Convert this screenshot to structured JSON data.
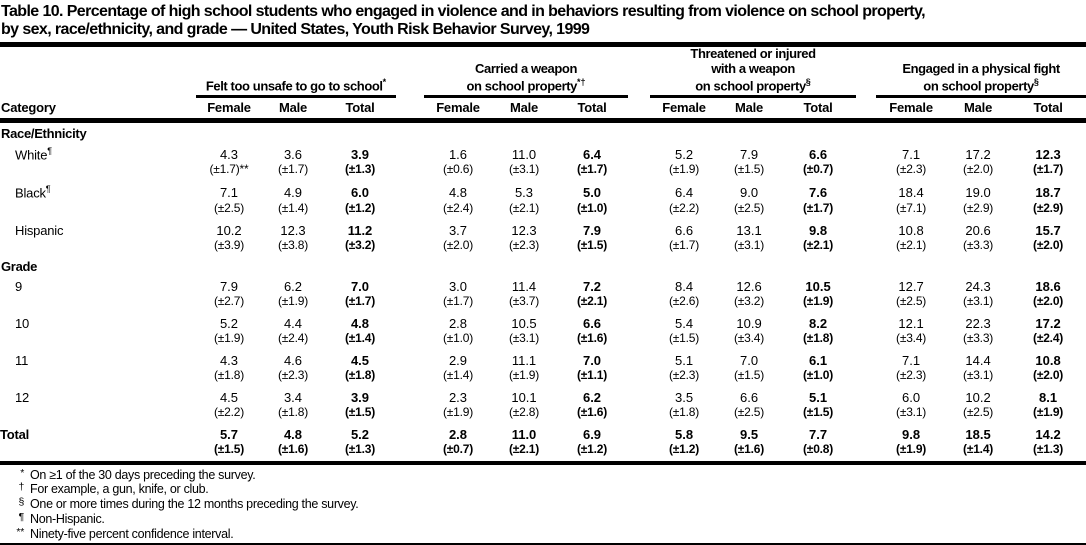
{
  "title": "Table 10. Percentage of high school students who engaged in violence and in behaviors resulting from violence on school property,\nby sex, race/ethnicity, and grade — United States, Youth Risk Behavior Survey, 1999",
  "header": {
    "category_label": "Category",
    "sub_columns": [
      "Female",
      "Male",
      "Total"
    ],
    "groups": [
      {
        "label": "Felt too unsafe to go to school",
        "marker": "*"
      },
      {
        "label": "Carried a weapon\non school property",
        "marker": "*†"
      },
      {
        "label": "Threatened or injured\nwith a weapon\non school property",
        "marker": "§"
      },
      {
        "label": "Engaged in a physical fight\non school property",
        "marker": "§"
      }
    ]
  },
  "sections": [
    {
      "label": "Race/Ethnicity",
      "rows": [
        {
          "label": "White",
          "sup": "¶",
          "values": [
            "4.3",
            "3.6",
            "3.9",
            "1.6",
            "11.0",
            "6.4",
            "5.2",
            "7.9",
            "6.6",
            "7.1",
            "17.2",
            "12.3"
          ],
          "cis": [
            "(±1.7)**",
            "(±1.7)",
            "(±1.3)",
            "(±0.6)",
            "(±3.1)",
            "(±1.7)",
            "(±1.9)",
            "(±1.5)",
            "(±0.7)",
            "(±2.3)",
            "(±2.0)",
            "(±1.7)"
          ]
        },
        {
          "label": "Black",
          "sup": "¶",
          "values": [
            "7.1",
            "4.9",
            "6.0",
            "4.8",
            "5.3",
            "5.0",
            "6.4",
            "9.0",
            "7.6",
            "18.4",
            "19.0",
            "18.7"
          ],
          "cis": [
            "(±2.5)",
            "(±1.4)",
            "(±1.2)",
            "(±2.4)",
            "(±2.1)",
            "(±1.0)",
            "(±2.2)",
            "(±2.5)",
            "(±1.7)",
            "(±7.1)",
            "(±2.9)",
            "(±2.9)"
          ]
        },
        {
          "label": "Hispanic",
          "sup": "",
          "values": [
            "10.2",
            "12.3",
            "11.2",
            "3.7",
            "12.3",
            "7.9",
            "6.6",
            "13.1",
            "9.8",
            "10.8",
            "20.6",
            "15.7"
          ],
          "cis": [
            "(±3.9)",
            "(±3.8)",
            "(±3.2)",
            "(±2.0)",
            "(±2.3)",
            "(±1.5)",
            "(±1.7)",
            "(±3.1)",
            "(±2.1)",
            "(±2.1)",
            "(±3.3)",
            "(±2.0)"
          ]
        }
      ]
    },
    {
      "label": "Grade",
      "rows": [
        {
          "label": "9",
          "sup": "",
          "values": [
            "7.9",
            "6.2",
            "7.0",
            "3.0",
            "11.4",
            "7.2",
            "8.4",
            "12.6",
            "10.5",
            "12.7",
            "24.3",
            "18.6"
          ],
          "cis": [
            "(±2.7)",
            "(±1.9)",
            "(±1.7)",
            "(±1.7)",
            "(±3.7)",
            "(±2.1)",
            "(±2.6)",
            "(±3.2)",
            "(±1.9)",
            "(±2.5)",
            "(±3.1)",
            "(±2.0)"
          ]
        },
        {
          "label": "10",
          "sup": "",
          "values": [
            "5.2",
            "4.4",
            "4.8",
            "2.8",
            "10.5",
            "6.6",
            "5.4",
            "10.9",
            "8.2",
            "12.1",
            "22.3",
            "17.2"
          ],
          "cis": [
            "(±1.9)",
            "(±2.4)",
            "(±1.4)",
            "(±1.0)",
            "(±3.1)",
            "(±1.6)",
            "(±1.5)",
            "(±3.4)",
            "(±1.8)",
            "(±3.4)",
            "(±3.3)",
            "(±2.4)"
          ]
        },
        {
          "label": "11",
          "sup": "",
          "values": [
            "4.3",
            "4.6",
            "4.5",
            "2.9",
            "11.1",
            "7.0",
            "5.1",
            "7.0",
            "6.1",
            "7.1",
            "14.4",
            "10.8"
          ],
          "cis": [
            "(±1.8)",
            "(±2.3)",
            "(±1.8)",
            "(±1.4)",
            "(±1.9)",
            "(±1.1)",
            "(±2.3)",
            "(±1.5)",
            "(±1.0)",
            "(±2.3)",
            "(±3.1)",
            "(±2.0)"
          ]
        },
        {
          "label": "12",
          "sup": "",
          "values": [
            "4.5",
            "3.4",
            "3.9",
            "2.3",
            "10.1",
            "6.2",
            "3.5",
            "6.6",
            "5.1",
            "6.0",
            "10.2",
            "8.1"
          ],
          "cis": [
            "(±2.2)",
            "(±1.8)",
            "(±1.5)",
            "(±1.9)",
            "(±2.8)",
            "(±1.6)",
            "(±1.8)",
            "(±2.5)",
            "(±1.5)",
            "(±3.1)",
            "(±2.5)",
            "(±1.9)"
          ]
        }
      ]
    }
  ],
  "total_row": {
    "label": "Total",
    "sup": "",
    "values": [
      "5.7",
      "4.8",
      "5.2",
      "2.8",
      "11.0",
      "6.9",
      "5.8",
      "9.5",
      "7.7",
      "9.8",
      "18.5",
      "14.2"
    ],
    "cis": [
      "(±1.5)",
      "(±1.6)",
      "(±1.3)",
      "(±0.7)",
      "(±2.1)",
      "(±1.2)",
      "(±1.2)",
      "(±1.6)",
      "(±0.8)",
      "(±1.9)",
      "(±1.4)",
      "(±1.3)"
    ]
  },
  "footnotes": [
    {
      "marker": "*",
      "text": "On ≥1 of the 30 days preceding the survey."
    },
    {
      "marker": "†",
      "text": "For example, a gun, knife, or club."
    },
    {
      "marker": "§",
      "text": "One or more times during the 12 months preceding the survey."
    },
    {
      "marker": "¶",
      "text": "Non-Hispanic."
    },
    {
      "marker": "**",
      "text": "Ninety-five percent confidence interval."
    }
  ]
}
